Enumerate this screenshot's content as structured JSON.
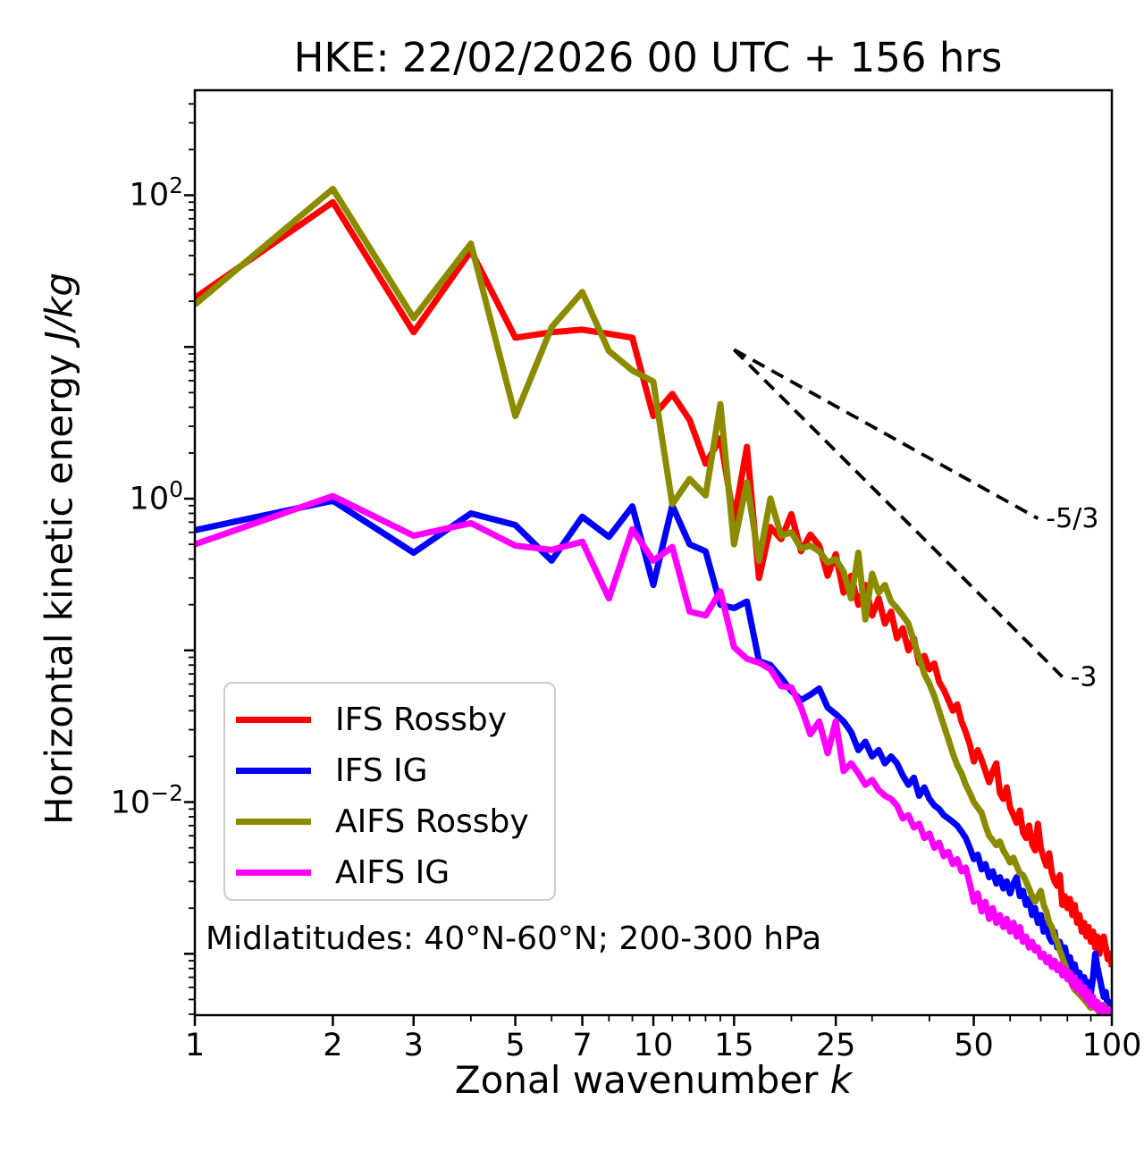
{
  "title": "HKE: 22/02/2026 00 UTC + 156 hrs",
  "annotation": "Midlatitudes: 40°N-60°N; 200-300 hPa",
  "axes": {
    "xlabel_text": "Zonal wavenumber ",
    "xlabel_math": "k",
    "ylabel_text": "Horizontal kinetic energy ",
    "ylabel_math": "J/kg",
    "xlim": [
      1,
      100
    ],
    "ylim": [
      0.000394,
      492
    ],
    "x_ticks": [
      1,
      2,
      3,
      5,
      7,
      10,
      15,
      25,
      50,
      100
    ],
    "x_minor_ticks": [
      4,
      6,
      8,
      9,
      11,
      12,
      13,
      14,
      20,
      30,
      40,
      60,
      70,
      80,
      90
    ],
    "y_ticks": [
      {
        "value": 100,
        "base": "10",
        "exp": "2"
      },
      {
        "value": 1,
        "base": "10",
        "exp": "0"
      },
      {
        "value": 0.01,
        "base": "10",
        "exp": "−2"
      }
    ],
    "grid": false
  },
  "reference_lines": [
    {
      "label": "-5/3",
      "x1": 15,
      "y1": 9.6,
      "x2": 69,
      "y2": 0.74
    },
    {
      "label": "-3",
      "x1": 15,
      "y1": 9.6,
      "x2": 78,
      "y2": 0.067
    }
  ],
  "chart_data": {
    "type": "line",
    "xscale": "log",
    "yscale": "log",
    "title": "HKE: 22/02/2026 00 UTC + 156 hrs",
    "xlabel": "Zonal wavenumber k",
    "ylabel": "Horizontal kinetic energy J/kg",
    "legend_position": "lower left",
    "x": [
      1,
      2,
      3,
      4,
      5,
      6,
      7,
      8,
      9,
      10,
      11,
      12,
      13,
      14,
      15,
      16,
      17,
      18,
      19,
      20,
      21,
      22,
      23,
      24,
      25,
      26,
      27,
      28,
      29,
      30,
      31,
      32,
      33,
      34,
      35,
      36,
      37,
      38,
      39,
      40,
      41,
      42,
      43,
      44,
      45,
      46,
      47,
      48,
      49,
      50,
      51,
      52,
      53,
      54,
      55,
      56,
      57,
      58,
      59,
      60,
      61,
      62,
      63,
      64,
      65,
      66,
      67,
      68,
      69,
      70,
      71,
      72,
      73,
      74,
      75,
      76,
      77,
      78,
      79,
      80,
      81,
      82,
      83,
      84,
      85,
      86,
      87,
      88,
      89,
      90,
      91,
      92,
      93,
      94,
      95,
      96,
      97,
      98,
      99,
      100
    ],
    "series": [
      {
        "name": "IFS Rossby",
        "color": "#ff0000",
        "values": [
          21,
          90,
          12.5,
          43,
          11.5,
          12.5,
          13,
          12.2,
          11.5,
          3.5,
          4.9,
          3.3,
          1.7,
          2.5,
          0.72,
          2.2,
          0.3,
          0.65,
          0.54,
          0.79,
          0.45,
          0.58,
          0.49,
          0.31,
          0.43,
          0.24,
          0.31,
          0.2,
          0.27,
          0.17,
          0.22,
          0.15,
          0.18,
          0.12,
          0.14,
          0.1,
          0.12,
          0.082,
          0.092,
          0.075,
          0.082,
          0.062,
          0.055,
          0.047,
          0.04,
          0.044,
          0.034,
          0.029,
          0.024,
          0.0185,
          0.022,
          0.019,
          0.016,
          0.0135,
          0.016,
          0.018,
          0.0115,
          0.0105,
          0.0125,
          0.0092,
          0.0082,
          0.0073,
          0.0088,
          0.0063,
          0.0058,
          0.007,
          0.0053,
          0.0048,
          0.0072,
          0.005,
          0.0043,
          0.0038,
          0.0046,
          0.0034,
          0.003,
          0.0028,
          0.0033,
          0.0021,
          0.0024,
          0.002,
          0.0023,
          0.0018,
          0.0021,
          0.0016,
          0.0018,
          0.0014,
          0.0016,
          0.0013,
          0.0015,
          0.0012,
          0.0014,
          0.0011,
          0.0013,
          0.001,
          0.0012,
          0.0013,
          0.0011,
          0.00092,
          0.001,
          0.00082
        ]
      },
      {
        "name": "IFS IG",
        "color": "#0000ff",
        "values": [
          0.62,
          0.97,
          0.44,
          0.8,
          0.67,
          0.39,
          0.76,
          0.56,
          0.89,
          0.27,
          0.9,
          0.5,
          0.45,
          0.2,
          0.19,
          0.21,
          0.085,
          0.08,
          0.066,
          0.054,
          0.047,
          0.051,
          0.056,
          0.042,
          0.038,
          0.034,
          0.029,
          0.022,
          0.025,
          0.02,
          0.022,
          0.018,
          0.02,
          0.018,
          0.015,
          0.013,
          0.0145,
          0.011,
          0.0125,
          0.0105,
          0.0095,
          0.009,
          0.0082,
          0.0078,
          0.0074,
          0.007,
          0.0064,
          0.0058,
          0.005,
          0.0042,
          0.0045,
          0.0036,
          0.0039,
          0.0032,
          0.0035,
          0.0029,
          0.0032,
          0.0027,
          0.003,
          0.0025,
          0.0029,
          0.0032,
          0.0024,
          0.0026,
          0.0021,
          0.0023,
          0.0018,
          0.002,
          0.0016,
          0.0018,
          0.0014,
          0.0016,
          0.0013,
          0.0012,
          0.0014,
          0.0011,
          0.0012,
          0.001,
          0.0011,
          0.0009,
          0.00095,
          0.0008,
          0.00085,
          0.0007,
          0.00075,
          0.00063,
          0.0007,
          0.0006,
          0.00065,
          0.00055,
          0.0007,
          0.001,
          0.00082,
          0.0007,
          0.0006,
          0.00052,
          0.00056,
          0.00045,
          0.00048,
          0.00042
        ]
      },
      {
        "name": "AIFS Rossby",
        "color": "#8b8b00",
        "values": [
          19,
          110,
          15.5,
          48,
          3.5,
          13.5,
          23,
          9.4,
          7.0,
          5.9,
          0.92,
          1.35,
          1.05,
          4.2,
          0.5,
          1.28,
          0.39,
          1.0,
          0.57,
          0.6,
          0.47,
          0.49,
          0.45,
          0.38,
          0.4,
          0.33,
          0.22,
          0.44,
          0.16,
          0.32,
          0.24,
          0.27,
          0.21,
          0.19,
          0.17,
          0.15,
          0.115,
          0.09,
          0.07,
          0.06,
          0.05,
          0.04,
          0.032,
          0.026,
          0.021,
          0.0175,
          0.0155,
          0.013,
          0.0115,
          0.01,
          0.0092,
          0.0085,
          0.007,
          0.006,
          0.0056,
          0.0052,
          0.0055,
          0.0048,
          0.0044,
          0.004,
          0.0043,
          0.0038,
          0.0034,
          0.0033,
          0.003,
          0.0027,
          0.0024,
          0.0022,
          0.0024,
          0.0026,
          0.0021,
          0.0019,
          0.0016,
          0.0015,
          0.0013,
          0.0012,
          0.00105,
          0.00095,
          0.00085,
          0.00075,
          0.00068,
          0.00062,
          0.00058,
          0.00056,
          0.00054,
          0.00052,
          0.0005,
          0.00048,
          0.00046,
          0.00044,
          0.00047,
          0.00049,
          0.00043,
          0.00041,
          0.00044,
          0.00046,
          0.00042,
          0.0004,
          0.00043,
          0.00041
        ]
      },
      {
        "name": "AIFS IG",
        "color": "#ff00ff",
        "values": [
          0.5,
          1.04,
          0.57,
          0.69,
          0.49,
          0.46,
          0.52,
          0.22,
          0.63,
          0.39,
          0.48,
          0.18,
          0.17,
          0.245,
          0.105,
          0.088,
          0.083,
          0.075,
          0.058,
          0.057,
          0.042,
          0.028,
          0.034,
          0.021,
          0.034,
          0.016,
          0.018,
          0.0155,
          0.013,
          0.014,
          0.012,
          0.011,
          0.0105,
          0.0095,
          0.0078,
          0.0082,
          0.0068,
          0.0072,
          0.0058,
          0.0062,
          0.005,
          0.0054,
          0.0044,
          0.0047,
          0.0039,
          0.0042,
          0.0035,
          0.0037,
          0.0029,
          0.0022,
          0.0025,
          0.0019,
          0.0022,
          0.0017,
          0.002,
          0.0016,
          0.0018,
          0.0015,
          0.0017,
          0.0014,
          0.0016,
          0.0013,
          0.0015,
          0.0012,
          0.0013,
          0.0011,
          0.0012,
          0.00105,
          0.0011,
          0.00095,
          0.001,
          0.00088,
          0.00095,
          0.00082,
          0.0009,
          0.00078,
          0.00085,
          0.00072,
          0.0008,
          0.00068,
          0.00075,
          0.00062,
          0.0007,
          0.00058,
          0.00065,
          0.00054,
          0.0006,
          0.0005,
          0.00056,
          0.00046,
          0.00052,
          0.00044,
          0.00048,
          0.00042,
          0.00046,
          0.0004,
          0.00044,
          0.00039,
          0.00042,
          0.0004
        ]
      }
    ]
  }
}
